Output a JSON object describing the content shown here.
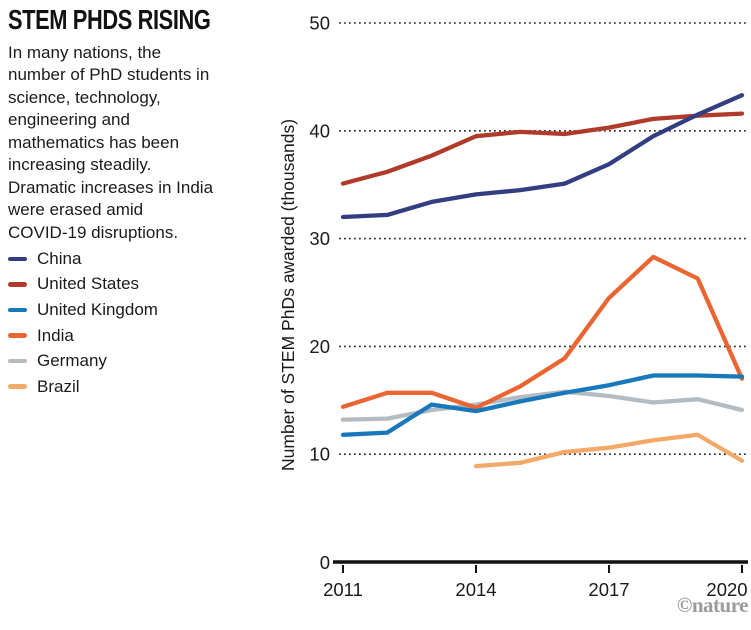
{
  "panel": {
    "title": "STEM PHDS RISING",
    "description": "In many nations, the\nnumber of PhD students in\nscience, technology,\nengineering and\nmathematics has been\nincreasing steadily.\nDramatic increases in India\nwere erased amid\nCOVID-19 disruptions."
  },
  "branding": {
    "credit": "©nature"
  },
  "chart_data": {
    "type": "line",
    "title": "STEM PHDS RISING",
    "xlabel": "",
    "ylabel": "Number of STEM PhDs awarded (thousands)",
    "x": [
      2011,
      2012,
      2013,
      2014,
      2015,
      2016,
      2017,
      2018,
      2019,
      2020
    ],
    "x_ticks": [
      2011,
      2014,
      2017,
      2020
    ],
    "y_ticks": [
      0,
      10,
      20,
      30,
      40,
      50
    ],
    "ylim": [
      0,
      50
    ],
    "grid": "horizontal-dotted",
    "legend_position": "left",
    "series": [
      {
        "name": "China",
        "color": "#333e82",
        "values": [
          32.0,
          32.2,
          33.4,
          34.1,
          34.5,
          35.1,
          36.9,
          39.5,
          41.5,
          43.3
        ]
      },
      {
        "name": "United States",
        "color": "#b03b2a",
        "values": [
          35.1,
          36.2,
          37.7,
          39.5,
          39.9,
          39.7,
          40.3,
          41.1,
          41.4,
          41.6
        ]
      },
      {
        "name": "United Kingdom",
        "color": "#1878bc",
        "values": [
          11.8,
          12.0,
          14.6,
          14.0,
          14.9,
          15.7,
          16.4,
          17.3,
          17.3,
          17.2
        ]
      },
      {
        "name": "India",
        "color": "#e96532",
        "values": [
          14.4,
          15.7,
          15.7,
          14.3,
          16.3,
          18.9,
          24.5,
          28.3,
          26.3,
          17.0
        ]
      },
      {
        "name": "Germany",
        "color": "#b4bcc3",
        "values": [
          13.2,
          13.3,
          14.1,
          14.6,
          15.3,
          15.8,
          15.4,
          14.8,
          15.1,
          14.1
        ]
      },
      {
        "name": "Brazil",
        "color": "#f4a967",
        "values": [
          null,
          null,
          null,
          8.9,
          9.2,
          10.2,
          10.6,
          11.3,
          11.8,
          9.4
        ]
      }
    ]
  }
}
